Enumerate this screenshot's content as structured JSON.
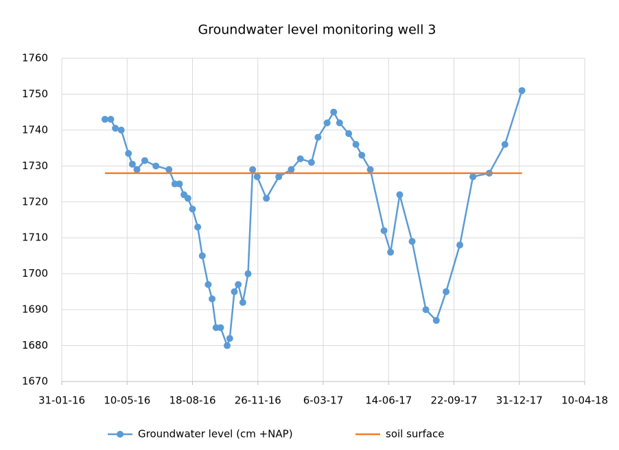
{
  "chart_data": {
    "type": "line",
    "title": "Groundwater level monitoring well 3",
    "xlim": [
      "2016-01-31",
      "2018-04-10"
    ],
    "xticks": [
      {
        "value": "2016-01-31",
        "label": "31-01-16"
      },
      {
        "value": "2016-05-10",
        "label": "10-05-16"
      },
      {
        "value": "2016-08-18",
        "label": "18-08-16"
      },
      {
        "value": "2016-11-26",
        "label": "26-11-16"
      },
      {
        "value": "2017-03-06",
        "label": "6-03-17"
      },
      {
        "value": "2017-06-14",
        "label": "14-06-17"
      },
      {
        "value": "2017-09-22",
        "label": "22-09-17"
      },
      {
        "value": "2017-12-31",
        "label": "31-12-17"
      },
      {
        "value": "2018-04-10",
        "label": "10-04-18"
      }
    ],
    "ylim": [
      1670,
      1760
    ],
    "yticks": [
      1670,
      1680,
      1690,
      1700,
      1710,
      1720,
      1730,
      1740,
      1750,
      1760
    ],
    "grid": true,
    "legend": "bottom",
    "series": [
      {
        "name": "Groundwater level (cm +NAP)",
        "color": "#5b9bd5",
        "marker": true,
        "x": [
          "2016-04-06",
          "2016-04-15",
          "2016-04-22",
          "2016-05-01",
          "2016-05-12",
          "2016-05-18",
          "2016-05-25",
          "2016-06-06",
          "2016-06-23",
          "2016-07-13",
          "2016-07-22",
          "2016-07-29",
          "2016-08-05",
          "2016-08-11",
          "2016-08-18",
          "2016-08-26",
          "2016-09-02",
          "2016-09-11",
          "2016-09-17",
          "2016-09-23",
          "2016-09-30",
          "2016-10-10",
          "2016-10-14",
          "2016-10-21",
          "2016-10-27",
          "2016-11-03",
          "2016-11-11",
          "2016-11-18",
          "2016-11-25",
          "2016-12-09",
          "2016-12-28",
          "2017-01-16",
          "2017-01-30",
          "2017-02-16",
          "2017-02-26",
          "2017-03-12",
          "2017-03-22",
          "2017-03-31",
          "2017-04-14",
          "2017-04-25",
          "2017-05-04",
          "2017-05-17",
          "2017-06-07",
          "2017-06-17",
          "2017-07-01",
          "2017-07-20",
          "2017-08-10",
          "2017-08-26",
          "2017-09-10",
          "2017-10-01",
          "2017-10-21",
          "2017-11-15",
          "2017-12-09",
          "2018-01-04"
        ],
        "values": [
          1743,
          1743,
          1740.5,
          1740,
          1733.5,
          1730.5,
          1729,
          1731.5,
          1730,
          1729,
          1725,
          1725,
          1722,
          1721,
          1718,
          1713,
          1705,
          1697,
          1693,
          1685,
          1685,
          1680,
          1682,
          1695,
          1697,
          1692,
          1700,
          1729,
          1727,
          1721,
          1727,
          1729,
          1732,
          1731,
          1738,
          1742,
          1745,
          1742,
          1739,
          1736,
          1733,
          1729,
          1712,
          1706,
          1722,
          1709,
          1690,
          1687,
          1695,
          1708,
          1727,
          1728,
          1736,
          1751
        ]
      },
      {
        "name": "soil surface",
        "color": "#ed7d31",
        "marker": false,
        "x": [
          "2016-04-06",
          "2018-01-04"
        ],
        "values": [
          1728,
          1728
        ]
      }
    ]
  }
}
